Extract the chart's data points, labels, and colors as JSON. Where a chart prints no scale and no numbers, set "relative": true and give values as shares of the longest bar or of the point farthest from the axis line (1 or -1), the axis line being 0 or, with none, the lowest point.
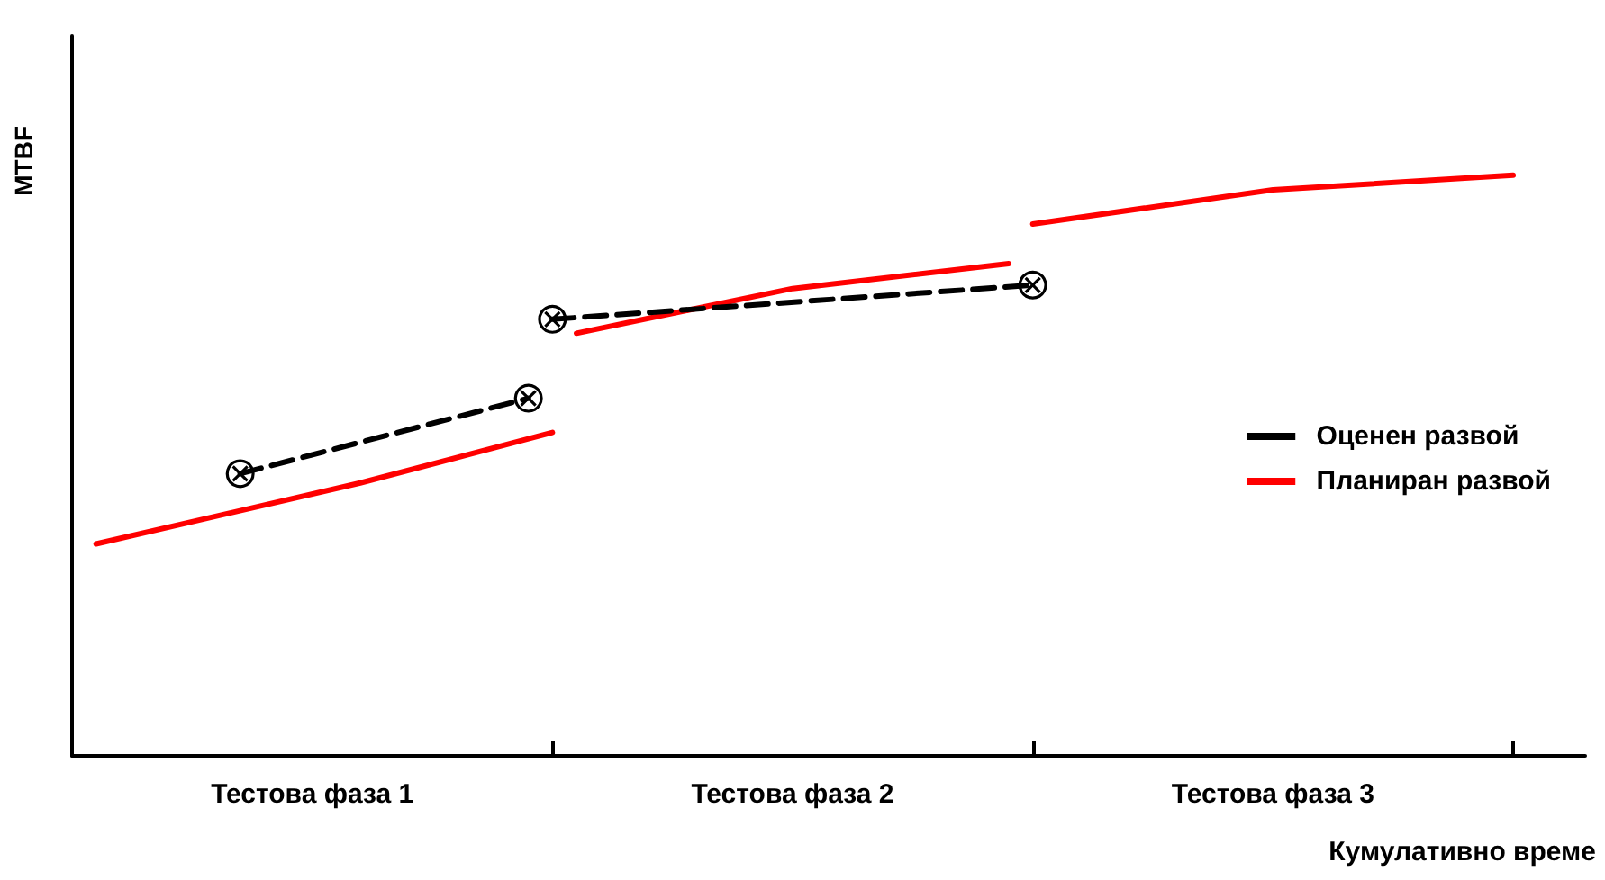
{
  "chart_data": {
    "type": "line",
    "relative": true,
    "xlabel": "Кумулативно време",
    "ylabel": "MTBF",
    "categories": [
      null,
      null,
      null,
      null,
      null,
      null,
      null,
      null,
      null,
      null,
      "Тестова фаза 1",
      null,
      null,
      null,
      null,
      null,
      null,
      null,
      null,
      null,
      null,
      null,
      null,
      null,
      null,
      null,
      null,
      null,
      null,
      null,
      "Тестова фаза 2",
      null,
      null,
      null,
      null,
      null,
      null,
      null,
      null,
      null,
      null,
      null,
      null,
      null,
      null,
      null,
      null,
      null,
      null,
      null,
      "Тестова фаза 3",
      null,
      null,
      null,
      null,
      null,
      null,
      null,
      null,
      null,
      null,
      null,
      null,
      null
    ],
    "series": [
      {
        "name": "Оценен развой",
        "color": "#000000",
        "line_style": "dashed",
        "marker": "circle",
        "values": [
          null,
          null,
          null,
          null,
          null,
          null,
          null,
          0.486,
          null,
          null,
          null,
          null,
          null,
          null,
          null,
          null,
          null,
          null,
          null,
          0.616,
          null,
          null,
          null,
          null,
          null,
          null,
          null,
          null,
          null,
          null,
          null,
          null,
          null,
          null,
          null,
          null,
          null,
          null,
          null,
          null,
          null,
          null,
          null,
          null,
          null,
          null,
          null,
          null,
          null,
          null,
          null,
          null,
          null,
          null,
          null,
          null,
          null,
          null,
          null,
          null,
          null,
          null,
          null,
          null
        ]
      },
      {
        "color": "#000000",
        "line_style": "dashed",
        "marker": "circle",
        "values": [
          null,
          null,
          null,
          null,
          null,
          null,
          null,
          null,
          null,
          null,
          null,
          null,
          null,
          null,
          null,
          null,
          null,
          null,
          null,
          null,
          0.752,
          null,
          null,
          null,
          null,
          null,
          null,
          null,
          null,
          null,
          null,
          null,
          null,
          null,
          null,
          null,
          null,
          null,
          null,
          null,
          0.811,
          null,
          null,
          null,
          null,
          null,
          null,
          null,
          null,
          null,
          null,
          null,
          null,
          null,
          null,
          null,
          null,
          null,
          null,
          null,
          null,
          null,
          null,
          null
        ]
      },
      {
        "name": "Планиран развой",
        "color": "#ff0000",
        "line_style": "solid",
        "marker": "none",
        "values": [
          null,
          0.365,
          null,
          null,
          null,
          null,
          null,
          null,
          null,
          null,
          null,
          null,
          0.47,
          null,
          null,
          null,
          null,
          null,
          null,
          null,
          0.557,
          null,
          null,
          null,
          null,
          null,
          null,
          null,
          null,
          null,
          null,
          null,
          null,
          null,
          null,
          null,
          null,
          null,
          null,
          null,
          null,
          null,
          null,
          null,
          null,
          null,
          null,
          null,
          null,
          null,
          null,
          null,
          null,
          null,
          null,
          null,
          null,
          null,
          null,
          null,
          null,
          null,
          null,
          null
        ]
      },
      {
        "color": "#ff0000",
        "line_style": "solid",
        "marker": "none",
        "values": [
          null,
          null,
          null,
          null,
          null,
          null,
          null,
          null,
          null,
          null,
          null,
          null,
          null,
          null,
          null,
          null,
          null,
          null,
          null,
          null,
          null,
          0.728,
          null,
          null,
          null,
          null,
          null,
          null,
          null,
          null,
          0.805,
          null,
          null,
          null,
          null,
          null,
          null,
          null,
          null,
          0.848,
          null,
          null,
          null,
          null,
          null,
          null,
          null,
          null,
          null,
          null,
          null,
          null,
          null,
          null,
          null,
          null,
          null,
          null,
          null,
          null,
          null,
          null,
          null,
          null
        ]
      },
      {
        "color": "#ff0000",
        "line_style": "solid",
        "marker": "none",
        "values": [
          null,
          null,
          null,
          null,
          null,
          null,
          null,
          null,
          null,
          null,
          null,
          null,
          null,
          null,
          null,
          null,
          null,
          null,
          null,
          null,
          null,
          null,
          null,
          null,
          null,
          null,
          null,
          null,
          null,
          null,
          null,
          null,
          null,
          null,
          null,
          null,
          null,
          null,
          null,
          null,
          0.916,
          null,
          null,
          null,
          null,
          null,
          null,
          null,
          null,
          null,
          0.975,
          null,
          null,
          null,
          null,
          null,
          null,
          null,
          null,
          null,
          1.0,
          null,
          null,
          null
        ]
      }
    ],
    "legend": "right"
  }
}
